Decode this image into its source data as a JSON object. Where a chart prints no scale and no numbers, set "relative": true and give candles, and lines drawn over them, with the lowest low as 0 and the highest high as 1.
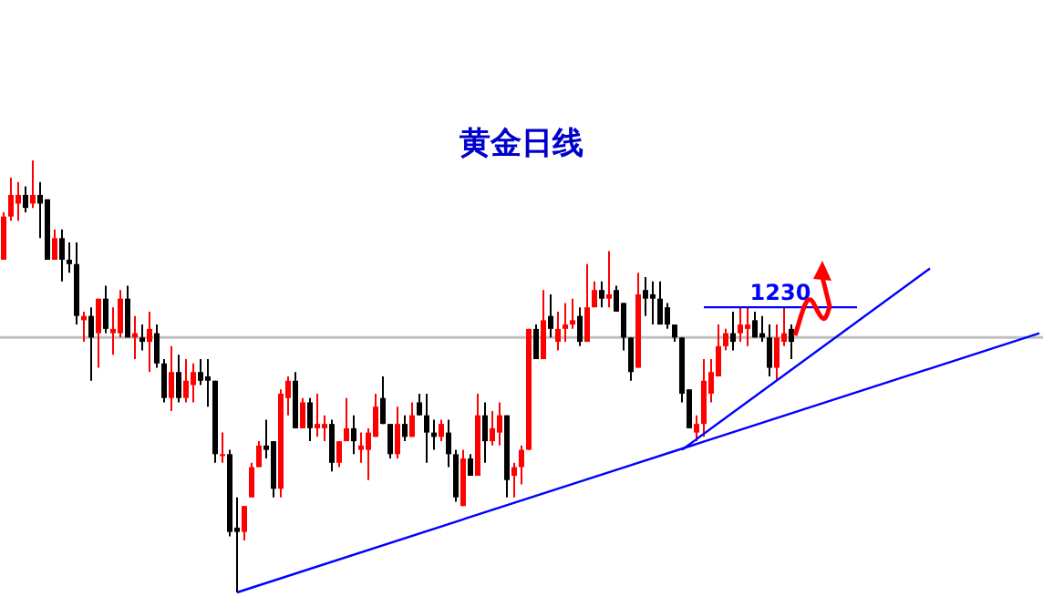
{
  "chart_data": {
    "type": "candlestick",
    "title": "黄金日线",
    "relative": true,
    "categories": [
      null,
      null,
      null,
      null,
      null,
      null,
      null,
      null,
      null,
      null,
      null,
      null,
      null,
      null,
      null,
      null,
      null,
      null,
      null,
      null,
      null,
      null,
      null,
      null,
      null,
      null,
      null,
      null,
      null,
      null,
      null,
      null,
      null,
      null,
      null,
      null,
      null,
      null,
      null,
      null,
      null,
      null,
      null,
      null,
      null,
      null,
      null,
      null,
      null,
      null,
      null,
      null,
      null,
      null,
      null,
      null,
      null,
      null,
      null,
      null,
      null,
      null,
      null,
      null,
      null,
      null,
      null,
      null,
      null,
      null,
      null,
      null,
      null,
      null,
      null,
      null,
      null,
      null,
      null,
      null,
      null,
      null,
      null,
      null,
      null,
      null,
      null,
      null,
      null,
      null,
      null,
      null,
      null,
      null,
      null,
      null,
      null,
      null,
      null,
      null,
      null,
      null,
      null,
      null,
      null,
      null,
      null,
      null,
      null,
      null,
      null,
      null,
      null,
      null,
      null,
      null,
      null,
      null,
      null,
      null,
      null,
      null,
      null,
      null,
      null,
      null,
      null,
      null,
      null,
      null,
      null,
      null,
      null,
      null,
      null,
      null,
      null,
      null,
      null,
      null,
      null,
      null,
      null
    ],
    "ohlc": [
      [
        0.77,
        0.88,
        0.77,
        0.87
      ],
      [
        0.87,
        0.96,
        0.86,
        0.92
      ],
      [
        0.9,
        0.95,
        0.86,
        0.92
      ],
      [
        0.92,
        0.94,
        0.88,
        0.89
      ],
      [
        0.9,
        1,
        0.89,
        0.92
      ],
      [
        0.92,
        0.95,
        0.82,
        0.9
      ],
      [
        0.91,
        0.91,
        0.77,
        0.77
      ],
      [
        0.77,
        0.84,
        0.77,
        0.82
      ],
      [
        0.82,
        0.84,
        0.72,
        0.77
      ],
      [
        0.77,
        0.81,
        0.74,
        0.76
      ],
      [
        0.76,
        0.81,
        0.62,
        0.64
      ],
      [
        0.63,
        0.65,
        0.58,
        0.64
      ],
      [
        0.64,
        0.66,
        0.49,
        0.59
      ],
      [
        0.6,
        0.68,
        0.52,
        0.68
      ],
      [
        0.68,
        0.71,
        0.6,
        0.61
      ],
      [
        0.6,
        0.66,
        0.55,
        0.61
      ],
      [
        0.6,
        0.7,
        0.59,
        0.68
      ],
      [
        0.68,
        0.71,
        0.59,
        0.59
      ],
      [
        0.59,
        0.64,
        0.54,
        0.6
      ],
      [
        0.59,
        0.62,
        0.56,
        0.58
      ],
      [
        0.58,
        0.65,
        0.51,
        0.61
      ],
      [
        0.6,
        0.62,
        0.52,
        0.53
      ],
      [
        0.53,
        0.54,
        0.44,
        0.45
      ],
      [
        0.45,
        0.57,
        0.42,
        0.51
      ],
      [
        0.51,
        0.55,
        0.44,
        0.45
      ],
      [
        0.45,
        0.54,
        0.44,
        0.49
      ],
      [
        0.48,
        0.53,
        0.44,
        0.51
      ],
      [
        0.51,
        0.54,
        0.48,
        0.49
      ],
      [
        0.5,
        0.54,
        0.43,
        0.49
      ],
      [
        0.49,
        0.49,
        0.3,
        0.32
      ],
      [
        0.32,
        0.37,
        0.3,
        0.32
      ],
      [
        0.32,
        0.33,
        0.13,
        0.14
      ],
      [
        0.15,
        0.22,
        0,
        0.14
      ],
      [
        0.14,
        0.2,
        0.12,
        0.2
      ],
      [
        0.22,
        0.3,
        0.22,
        0.29
      ],
      [
        0.29,
        0.35,
        0.29,
        0.34
      ],
      [
        0.34,
        0.4,
        0.31,
        0.33
      ],
      [
        0.35,
        0.35,
        0.22,
        0.24
      ],
      [
        0.24,
        0.47,
        0.22,
        0.46
      ],
      [
        0.45,
        0.5,
        0.41,
        0.49
      ],
      [
        0.49,
        0.51,
        0.38,
        0.38
      ],
      [
        0.38,
        0.45,
        0.38,
        0.44
      ],
      [
        0.44,
        0.45,
        0.35,
        0.38
      ],
      [
        0.38,
        0.46,
        0.36,
        0.39
      ],
      [
        0.38,
        0.41,
        0.35,
        0.39
      ],
      [
        0.39,
        0.4,
        0.28,
        0.3
      ],
      [
        0.3,
        0.35,
        0.29,
        0.35
      ],
      [
        0.35,
        0.45,
        0.35,
        0.38
      ],
      [
        0.38,
        0.41,
        0.32,
        0.35
      ],
      [
        0.33,
        0.37,
        0.3,
        0.34
      ],
      [
        0.33,
        0.38,
        0.26,
        0.37
      ],
      [
        0.36,
        0.46,
        0.36,
        0.43
      ],
      [
        0.45,
        0.5,
        0.39,
        0.39
      ],
      [
        0.39,
        0.39,
        0.31,
        0.32
      ],
      [
        0.32,
        0.43,
        0.31,
        0.39
      ],
      [
        0.39,
        0.41,
        0.35,
        0.36
      ],
      [
        0.36,
        0.44,
        0.36,
        0.41
      ],
      [
        0.44,
        0.46,
        0.41,
        0.41
      ],
      [
        0.41,
        0.46,
        0.3,
        0.37
      ],
      [
        0.37,
        0.4,
        0.33,
        0.36
      ],
      [
        0.36,
        0.4,
        0.35,
        0.39
      ],
      [
        0.37,
        0.4,
        0.29,
        0.32
      ],
      [
        0.32,
        0.33,
        0.21,
        0.22
      ],
      [
        0.2,
        0.33,
        0.2,
        0.31
      ],
      [
        0.31,
        0.32,
        0.27,
        0.27
      ],
      [
        0.27,
        0.46,
        0.27,
        0.41
      ],
      [
        0.41,
        0.44,
        0.3,
        0.35
      ],
      [
        0.35,
        0.42,
        0.34,
        0.38
      ],
      [
        0.37,
        0.44,
        0.34,
        0.41
      ],
      [
        0.41,
        0.41,
        0.22,
        0.26
      ],
      [
        0.27,
        0.3,
        0.22,
        0.29
      ],
      [
        0.29,
        0.34,
        0.25,
        0.33
      ],
      [
        0.33,
        0.61,
        0.33,
        0.61
      ],
      [
        0.61,
        0.62,
        0.54,
        0.54
      ],
      [
        0.54,
        0.7,
        0.54,
        0.63
      ],
      [
        0.64,
        0.69,
        0.59,
        0.61
      ],
      [
        0.58,
        0.65,
        0.56,
        0.61
      ],
      [
        0.61,
        0.67,
        0.58,
        0.62
      ],
      [
        0.62,
        0.68,
        0.61,
        0.63
      ],
      [
        0.64,
        0.66,
        0.57,
        0.58
      ],
      [
        0.58,
        0.76,
        0.58,
        0.66
      ],
      [
        0.66,
        0.72,
        0.66,
        0.7
      ],
      [
        0.7,
        0.72,
        0.66,
        0.68
      ],
      [
        0.68,
        0.79,
        0.66,
        0.69
      ],
      [
        0.7,
        0.71,
        0.65,
        0.65
      ],
      [
        0.67,
        0.67,
        0.56,
        0.59
      ],
      [
        0.59,
        0.59,
        0.49,
        0.51
      ],
      [
        0.52,
        0.74,
        0.52,
        0.69
      ],
      [
        0.7,
        0.73,
        0.64,
        0.68
      ],
      [
        0.69,
        0.72,
        0.62,
        0.68
      ],
      [
        0.68,
        0.72,
        0.62,
        0.62
      ],
      [
        0.66,
        0.67,
        0.61,
        0.62
      ],
      [
        0.62,
        0.62,
        0.58,
        0.59
      ],
      [
        0.59,
        0.59,
        0.44,
        0.46
      ],
      [
        0.47,
        0.47,
        0.38,
        0.38
      ],
      [
        0.37,
        0.41,
        0.35,
        0.39
      ],
      [
        0.39,
        0.54,
        0.36,
        0.49
      ],
      [
        0.46,
        0.54,
        0.44,
        0.51
      ],
      [
        0.5,
        0.62,
        0.5,
        0.57
      ],
      [
        0.57,
        0.61,
        0.56,
        0.6
      ],
      [
        0.6,
        0.65,
        0.56,
        0.58
      ],
      [
        0.6,
        0.66,
        0.58,
        0.62
      ],
      [
        0.61,
        0.66,
        0.57,
        0.62
      ],
      [
        0.63,
        0.65,
        0.59,
        0.59
      ],
      [
        0.6,
        0.64,
        0.58,
        0.59
      ],
      [
        0.59,
        0.62,
        0.5,
        0.52
      ],
      [
        0.52,
        0.62,
        0.49,
        0.59
      ],
      [
        0.58,
        0.66,
        0.57,
        0.6
      ],
      [
        0.61,
        0.62,
        0.54,
        0.58
      ],
      null,
      null,
      null,
      null,
      null,
      null,
      null,
      null,
      null,
      null,
      null,
      null,
      null,
      null,
      null,
      null,
      null,
      null,
      null,
      null,
      null,
      null,
      null,
      null,
      null,
      null,
      null,
      null,
      null,
      null,
      null,
      null,
      null,
      null
    ],
    "colors": [
      "#ff0000",
      "#ff0000",
      "#ff0000",
      "#000000",
      "#ff0000",
      "#000000",
      "#000000",
      "#ff0000",
      "#000000",
      "#000000",
      "#000000",
      "#ff0000",
      "#000000",
      "#ff0000",
      "#000000",
      "#ff0000",
      "#ff0000",
      "#000000",
      "#ff0000",
      "#000000",
      "#ff0000",
      "#000000",
      "#000000",
      "#ff0000",
      "#000000",
      "#ff0000",
      "#ff0000",
      "#000000",
      "#000000",
      "#000000",
      "#ff0000",
      "#000000",
      "#000000",
      "#ff0000",
      "#ff0000",
      "#ff0000",
      "#000000",
      "#000000",
      "#ff0000",
      "#ff0000",
      "#000000",
      "#ff0000",
      "#000000",
      "#ff0000",
      "#ff0000",
      "#000000",
      "#ff0000",
      "#ff0000",
      "#000000",
      "#ff0000",
      "#ff0000",
      "#ff0000",
      "#000000",
      "#000000",
      "#ff0000",
      "#000000",
      "#ff0000",
      "#000000",
      "#000000",
      "#000000",
      "#ff0000",
      "#000000",
      "#000000",
      "#ff0000",
      "#000000",
      "#ff0000",
      "#000000",
      "#ff0000",
      "#ff0000",
      "#000000",
      "#ff0000",
      "#ff0000",
      "#ff0000",
      "#000000",
      "#ff0000",
      "#000000",
      "#ff0000",
      "#ff0000",
      "#ff0000",
      "#000000",
      "#ff0000",
      "#ff0000",
      "#000000",
      "#ff0000",
      "#000000",
      "#000000",
      "#000000",
      "#ff0000",
      "#000000",
      "#000000",
      "#000000",
      "#000000",
      "#000000",
      "#000000",
      "#000000",
      "#ff0000",
      "#ff0000",
      "#ff0000",
      "#ff0000",
      "#ff0000",
      "#000000",
      "#ff0000",
      "#ff0000",
      "#000000",
      "#000000",
      "#000000",
      "#ff0000",
      "#ff0000",
      "#000000",
      null,
      null,
      null,
      null,
      null,
      null,
      null,
      null,
      null,
      null,
      null,
      null,
      null,
      null,
      null,
      null,
      null,
      null,
      null,
      null,
      null,
      null,
      null,
      null,
      null,
      null,
      null,
      null,
      null,
      null,
      null,
      null,
      null,
      null
    ],
    "series": [
      {
        "type": "line",
        "name": "1230",
        "color": "#0000ff",
        "values": [
          null,
          null,
          null,
          null,
          null,
          null,
          null,
          null,
          null,
          null,
          null,
          null,
          null,
          null,
          null,
          null,
          null,
          null,
          null,
          null,
          null,
          null,
          null,
          null,
          null,
          null,
          null,
          null,
          null,
          null,
          null,
          null,
          null,
          null,
          null,
          null,
          null,
          null,
          null,
          null,
          null,
          null,
          null,
          null,
          null,
          null,
          null,
          null,
          null,
          null,
          null,
          null,
          null,
          null,
          null,
          null,
          null,
          null,
          null,
          null,
          null,
          null,
          null,
          null,
          null,
          null,
          null,
          null,
          null,
          null,
          null,
          null,
          null,
          null,
          null,
          null,
          null,
          null,
          null,
          null,
          null,
          null,
          null,
          null,
          null,
          null,
          null,
          null,
          null,
          null,
          null,
          null,
          null,
          null,
          null,
          null,
          0.66,
          null,
          null,
          null,
          null,
          null,
          null,
          null,
          null,
          null,
          null,
          null,
          null,
          null,
          null,
          null,
          null,
          null,
          null,
          null,
          null,
          0.66,
          null,
          null,
          null,
          null,
          null,
          null,
          null,
          null,
          null,
          null,
          null,
          null,
          null,
          null,
          null,
          null,
          null,
          null,
          null,
          null,
          null,
          null,
          null,
          null,
          null
        ]
      },
      {
        "type": "line",
        "color": "#0000ff",
        "values": [
          null,
          null,
          null,
          null,
          null,
          null,
          null,
          null,
          null,
          null,
          null,
          null,
          null,
          null,
          null,
          null,
          null,
          null,
          null,
          null,
          null,
          null,
          null,
          null,
          null,
          null,
          null,
          null,
          null,
          null,
          null,
          null,
          0,
          null,
          null,
          null,
          null,
          null,
          null,
          null,
          null,
          null,
          null,
          null,
          null,
          null,
          null,
          null,
          null,
          null,
          null,
          null,
          null,
          null,
          null,
          null,
          null,
          null,
          null,
          null,
          null,
          null,
          null,
          null,
          null,
          null,
          null,
          null,
          null,
          null,
          null,
          null,
          null,
          null,
          null,
          null,
          null,
          null,
          null,
          null,
          null,
          null,
          null,
          null,
          null,
          null,
          null,
          null,
          null,
          null,
          null,
          null,
          null,
          null,
          null,
          null,
          null,
          null,
          null,
          null,
          null,
          null,
          null,
          null,
          null,
          null,
          null,
          null,
          null,
          null,
          null,
          null,
          null,
          null,
          null,
          null,
          null,
          null,
          null,
          null,
          null,
          null,
          null,
          null,
          null,
          null,
          null,
          null,
          null,
          null,
          null,
          null,
          null,
          null,
          null,
          null,
          null,
          null,
          null,
          null,
          null,
          null,
          0.6
        ]
      },
      {
        "type": "line",
        "color": "#0000ff",
        "values": [
          null,
          null,
          null,
          null,
          null,
          null,
          null,
          null,
          null,
          null,
          null,
          null,
          null,
          null,
          null,
          null,
          null,
          null,
          null,
          null,
          null,
          null,
          null,
          null,
          null,
          null,
          null,
          null,
          null,
          null,
          null,
          null,
          null,
          null,
          null,
          null,
          null,
          null,
          null,
          null,
          null,
          null,
          null,
          null,
          null,
          null,
          null,
          null,
          null,
          null,
          null,
          null,
          null,
          null,
          null,
          null,
          null,
          null,
          null,
          null,
          null,
          null,
          null,
          null,
          null,
          null,
          null,
          null,
          null,
          null,
          null,
          null,
          null,
          null,
          null,
          null,
          null,
          null,
          null,
          null,
          null,
          null,
          null,
          null,
          null,
          null,
          null,
          null,
          null,
          null,
          null,
          null,
          null,
          0.33,
          null,
          null,
          null,
          null,
          null,
          null,
          null,
          null,
          null,
          null,
          null,
          null,
          null,
          null,
          null,
          null,
          null,
          null,
          null,
          null,
          null,
          null,
          null,
          null,
          null,
          null,
          null,
          null,
          null,
          null,
          null,
          null,
          null,
          0.75,
          null,
          null,
          null,
          null,
          null,
          null,
          null,
          null,
          null,
          null,
          null,
          null,
          null,
          null,
          null
        ]
      }
    ],
    "ref_lines": [
      {
        "axis": "y",
        "value": 0.59,
        "color": "#c0c0c0"
      }
    ]
  }
}
